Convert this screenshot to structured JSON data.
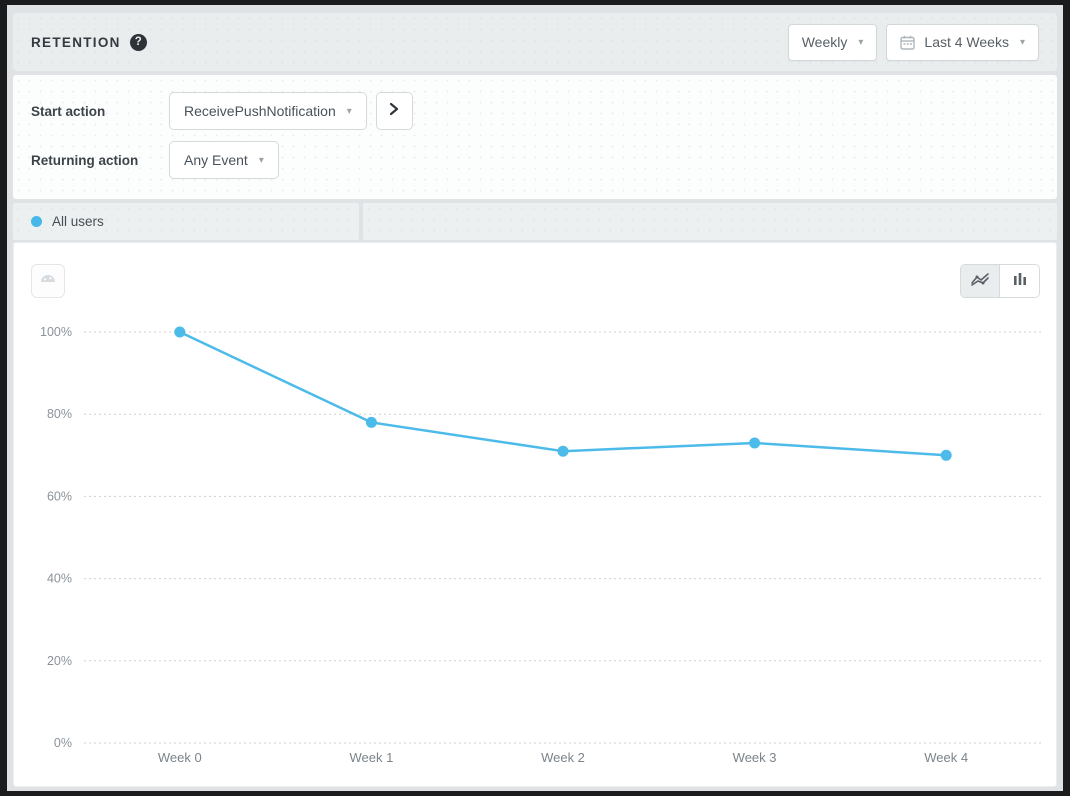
{
  "header": {
    "title": "RETENTION",
    "help_badge": "?",
    "interval_dropdown": {
      "value": "Weekly"
    },
    "date_range_dropdown": {
      "value": "Last 4 Weeks"
    }
  },
  "filters": {
    "start_action": {
      "label": "Start action",
      "value": "ReceivePushNotification"
    },
    "returning_action": {
      "label": "Returning action",
      "value": "Any Event"
    }
  },
  "segments": {
    "tabs": [
      {
        "label": "All users",
        "dot_color": "#45b7e9"
      }
    ]
  },
  "chart_toolbar": {
    "left_icon": "pie-chart-icon",
    "view_toggle": [
      "line-chart-view",
      "bar-chart-view"
    ],
    "selected_view": "line-chart-view"
  },
  "chart_data": {
    "type": "line",
    "title": "",
    "categories": [
      "Week 0",
      "Week 1",
      "Week 2",
      "Week 3",
      "Week 4"
    ],
    "series": [
      {
        "name": "All users",
        "color": "#4dbbea",
        "values": [
          100,
          78,
          71,
          73,
          70
        ]
      }
    ],
    "xlabel": "",
    "ylabel": "",
    "ylim": [
      0,
      100
    ],
    "yticks": [
      0,
      20,
      40,
      60,
      80,
      100
    ],
    "ytick_suffix": "%",
    "grid": "horizontal-dotted",
    "legend_position": "none"
  },
  "colors": {
    "accent_blue": "#4dbbea",
    "frame": "#1b1c1e",
    "page_bg": "#dfe3e5",
    "header_bg": "#e9edee",
    "grid_line": "#cbd1d5",
    "tick_text": "#8a9299",
    "label_text": "#7b848b"
  }
}
